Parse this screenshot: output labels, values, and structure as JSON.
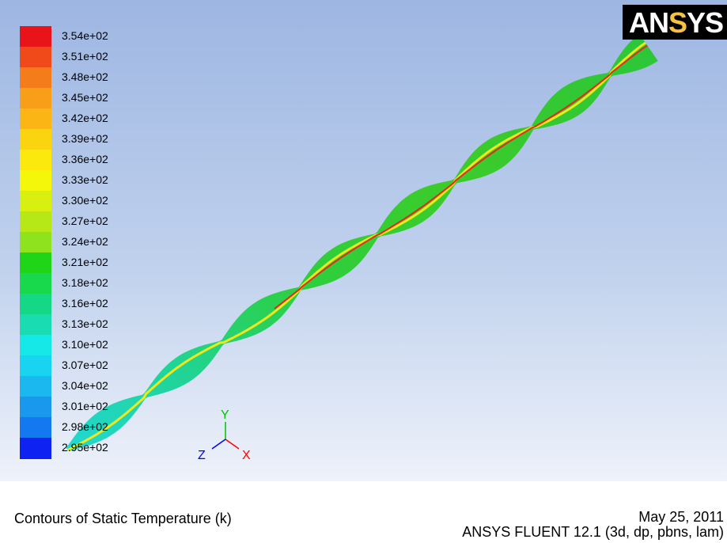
{
  "window": {
    "logo_text_primary": "AN",
    "logo_text_accent": "S",
    "logo_text_rest": "YS"
  },
  "colorbar": {
    "labels": [
      "3.54e+02",
      "3.51e+02",
      "3.48e+02",
      "3.45e+02",
      "3.42e+02",
      "3.39e+02",
      "3.36e+02",
      "3.33e+02",
      "3.30e+02",
      "3.27e+02",
      "3.24e+02",
      "3.21e+02",
      "3.18e+02",
      "3.16e+02",
      "3.13e+02",
      "3.10e+02",
      "3.07e+02",
      "3.04e+02",
      "3.01e+02",
      "2.98e+02",
      "2.95e+02"
    ],
    "colors": [
      "#e8141a",
      "#f04a1a",
      "#f57c1a",
      "#f99e18",
      "#fbb514",
      "#fbd410",
      "#fbe80c",
      "#f5f70a",
      "#d8f010",
      "#b6e818",
      "#8ee21e",
      "#20d418",
      "#18d84c",
      "#14d885",
      "#1adcb2",
      "#16e8e8",
      "#18d4f0",
      "#1ab8ef",
      "#1a98ee",
      "#1478f0",
      "#0e22f2"
    ]
  },
  "axes": {
    "y_label": "Y",
    "z_label": "Z",
    "x_label": "X",
    "colors": {
      "x": "#ff0000",
      "y": "#00c000",
      "z": "#0000ff"
    }
  },
  "footer": {
    "caption": "Contours of Static Temperature (k)",
    "date": "May 25, 2011",
    "version": "ANSYS FLUENT 12.1 (3d, dp, pbns, lam)"
  }
}
